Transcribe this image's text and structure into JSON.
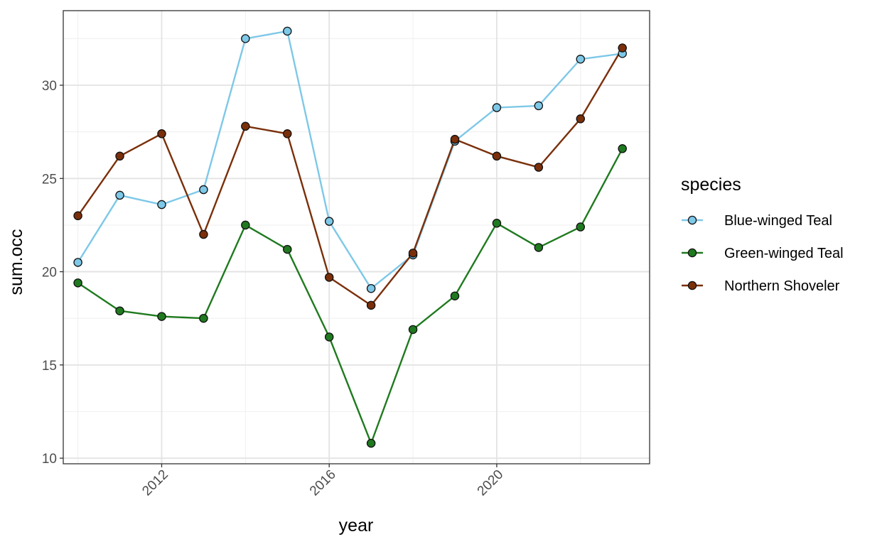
{
  "chart_data": {
    "type": "line",
    "xlabel": "year",
    "ylabel": "sum.occ",
    "x": [
      2010,
      2011,
      2012,
      2013,
      2014,
      2015,
      2016,
      2017,
      2018,
      2019,
      2020,
      2021,
      2022,
      2023
    ],
    "xlim": [
      2009.65,
      2023.65
    ],
    "ylim": [
      9.7,
      34.0
    ],
    "x_ticks": [
      2012,
      2016,
      2020
    ],
    "x_tick_labels": [
      "2012",
      "2016",
      "2020"
    ],
    "y_ticks": [
      10,
      15,
      20,
      25,
      30
    ],
    "y_tick_labels": [
      "10",
      "15",
      "20",
      "25",
      "30"
    ],
    "x_tick_label_rotation": "45 degrees",
    "grid": true,
    "legend": {
      "title": "species",
      "position": "right"
    },
    "series": [
      {
        "name": "Blue-winged Teal",
        "color": "#7ec8e8",
        "values": [
          20.5,
          24.1,
          23.6,
          24.4,
          32.5,
          32.9,
          22.7,
          19.1,
          20.9,
          27.0,
          28.8,
          28.9,
          31.4,
          31.7
        ]
      },
      {
        "name": "Green-winged Teal",
        "color": "#1f7a1f",
        "values": [
          19.4,
          17.9,
          17.6,
          17.5,
          22.5,
          21.2,
          16.5,
          10.8,
          16.9,
          18.7,
          22.6,
          21.3,
          22.4,
          26.6
        ]
      },
      {
        "name": "Northern Shoveler",
        "color": "#7a2f0a",
        "values": [
          23.0,
          26.2,
          27.4,
          22.0,
          27.8,
          27.4,
          19.7,
          18.2,
          21.0,
          27.1,
          26.2,
          25.6,
          28.2,
          32.0
        ]
      }
    ]
  }
}
